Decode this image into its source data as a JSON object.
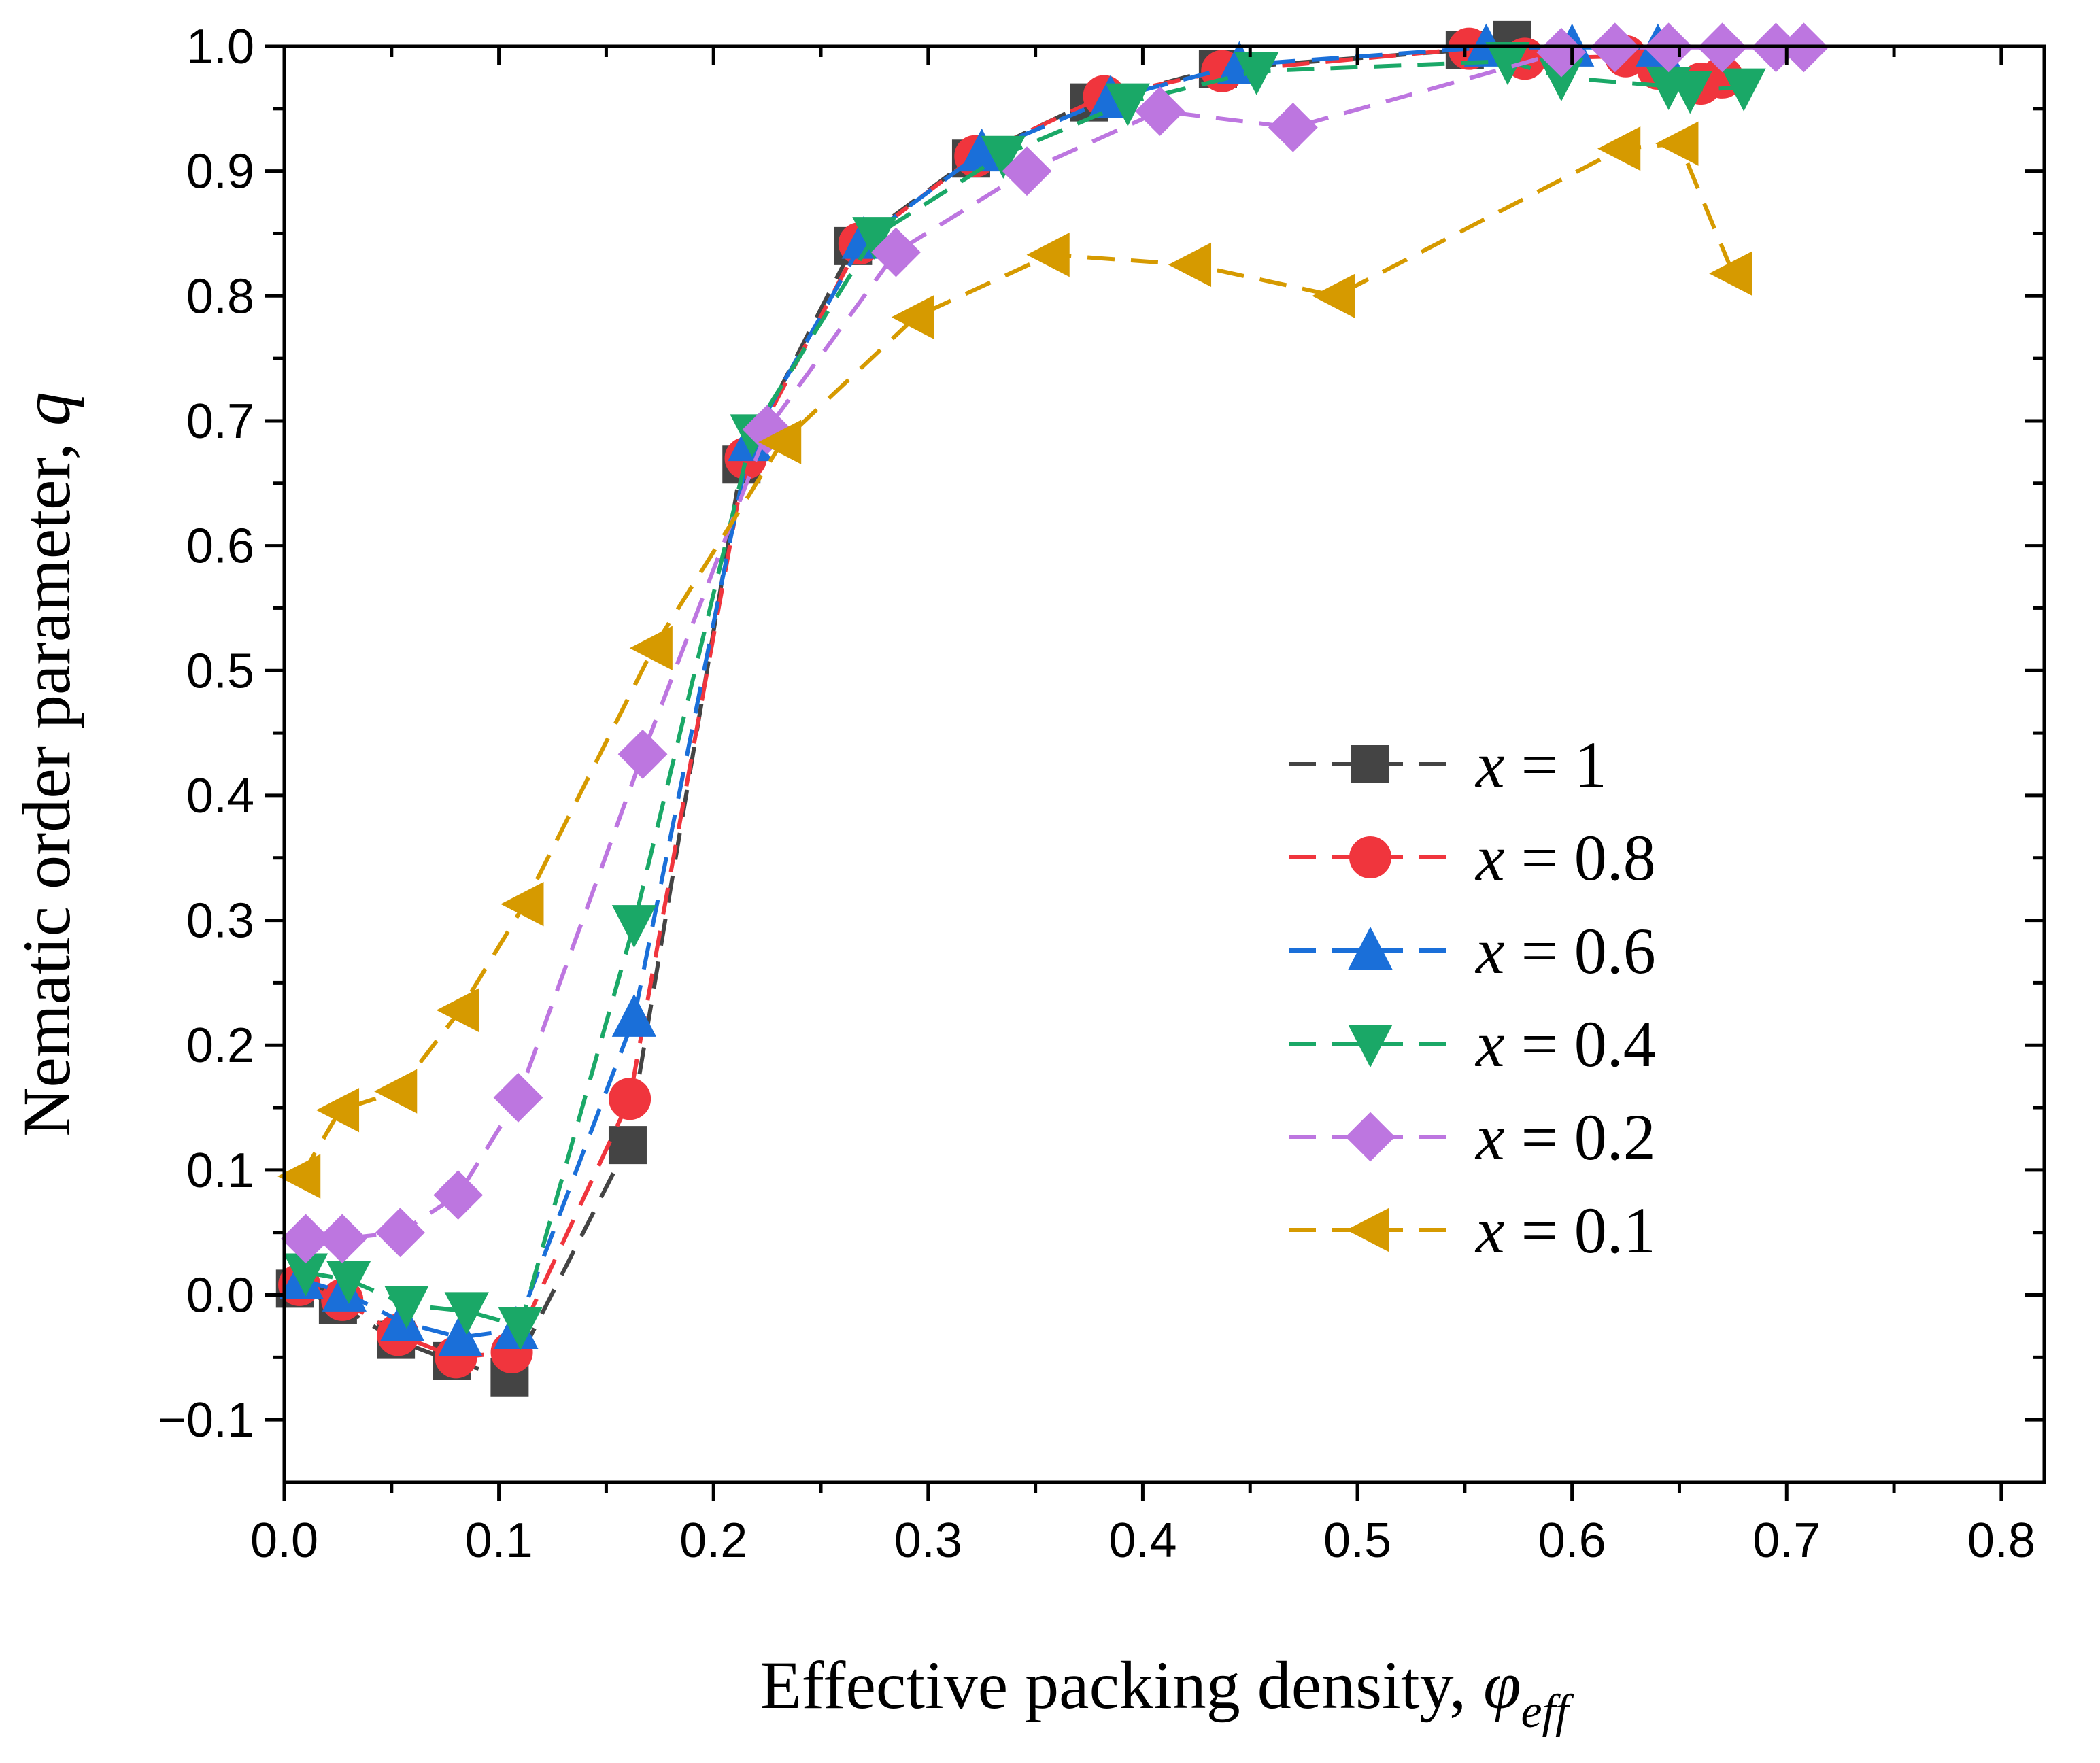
{
  "chart_data": {
    "type": "line",
    "title": "",
    "xlabel_main": "Effective packing density, ",
    "xlabel_symbol": "φ",
    "xlabel_sub": "eff",
    "ylabel_main": "Nematic order parameter, ",
    "ylabel_symbol": "q",
    "xlim": [
      0.0,
      0.82
    ],
    "ylim": [
      -0.15,
      1.0
    ],
    "xticks": [
      "0.0",
      "0.1",
      "0.2",
      "0.3",
      "0.4",
      "0.5",
      "0.6",
      "0.7",
      "0.8"
    ],
    "yticks": [
      "-0.1",
      "0.0",
      "0.1",
      "0.2",
      "0.3",
      "0.4",
      "0.5",
      "0.6",
      "0.7",
      "0.8",
      "0.9",
      "1.0"
    ],
    "grid": false,
    "legend_position": "center-right",
    "series": [
      {
        "name": "x = 1",
        "legend_var": "x",
        "legend_rest": " = 1",
        "color": "#444444",
        "marker": "square",
        "x": [
          0.005,
          0.025,
          0.052,
          0.078,
          0.105,
          0.16,
          0.213,
          0.265,
          0.32,
          0.375,
          0.435,
          0.55,
          0.572
        ],
        "y": [
          0.005,
          -0.008,
          -0.036,
          -0.053,
          -0.066,
          0.12,
          0.665,
          0.84,
          0.91,
          0.955,
          0.982,
          0.997,
          1.005
        ]
      },
      {
        "name": "x = 0.8",
        "legend_var": "x",
        "legend_rest": " = 0.8",
        "color": "#f0353d",
        "marker": "circle",
        "x": [
          0.007,
          0.027,
          0.053,
          0.08,
          0.106,
          0.161,
          0.215,
          0.268,
          0.322,
          0.382,
          0.437,
          0.552,
          0.578,
          0.625,
          0.64,
          0.66,
          0.67
        ],
        "y": [
          0.008,
          -0.004,
          -0.032,
          -0.05,
          -0.046,
          0.157,
          0.67,
          0.842,
          0.912,
          0.96,
          0.98,
          0.998,
          0.99,
          0.992,
          0.982,
          0.97,
          0.975
        ]
      },
      {
        "name": "x = 0.6",
        "legend_var": "x",
        "legend_rest": " = 0.6",
        "color": "#1a6fd9",
        "marker": "triangle-up",
        "x": [
          0.008,
          0.028,
          0.055,
          0.082,
          0.108,
          0.163,
          0.217,
          0.27,
          0.325,
          0.385,
          0.445,
          0.56,
          0.6,
          0.64
        ],
        "y": [
          0.012,
          0.002,
          -0.022,
          -0.034,
          -0.028,
          0.222,
          0.683,
          0.845,
          0.915,
          0.958,
          0.985,
          0.999,
          0.999,
          0.999
        ]
      },
      {
        "name": "x = 0.4",
        "legend_var": "x",
        "legend_rest": " = 0.4",
        "color": "#1aa867",
        "marker": "triangle-down",
        "x": [
          0.01,
          0.03,
          0.057,
          0.085,
          0.11,
          0.163,
          0.218,
          0.275,
          0.335,
          0.393,
          0.453,
          0.57,
          0.595,
          0.645,
          0.655,
          0.68
        ],
        "y": [
          0.018,
          0.012,
          -0.008,
          -0.013,
          -0.025,
          0.297,
          0.69,
          0.848,
          0.913,
          0.955,
          0.98,
          0.988,
          0.975,
          0.968,
          0.965,
          0.967
        ]
      },
      {
        "name": "x = 0.2",
        "legend_var": "x",
        "legend_rest": " = 0.2",
        "color": "#bd76e0",
        "marker": "diamond",
        "x": [
          0.01,
          0.027,
          0.054,
          0.081,
          0.109,
          0.167,
          0.225,
          0.285,
          0.346,
          0.408,
          0.47,
          0.595,
          0.62,
          0.645,
          0.67,
          0.695,
          0.708
        ],
        "y": [
          0.045,
          0.045,
          0.05,
          0.08,
          0.158,
          0.433,
          0.693,
          0.835,
          0.9,
          0.948,
          0.935,
          0.995,
          0.999,
          0.999,
          0.999,
          0.999,
          0.999
        ]
      },
      {
        "name": "x = 0.1",
        "legend_var": "x",
        "legend_rest": " = 0.1",
        "color": "#d69a00",
        "marker": "triangle-left",
        "x": [
          0.008,
          0.026,
          0.053,
          0.082,
          0.112,
          0.172,
          0.232,
          0.294,
          0.357,
          0.423,
          0.49,
          0.623,
          0.65,
          0.675
        ],
        "y": [
          0.095,
          0.148,
          0.163,
          0.228,
          0.313,
          0.518,
          0.683,
          0.783,
          0.833,
          0.825,
          0.8,
          0.918,
          0.922,
          0.818
        ]
      }
    ]
  }
}
